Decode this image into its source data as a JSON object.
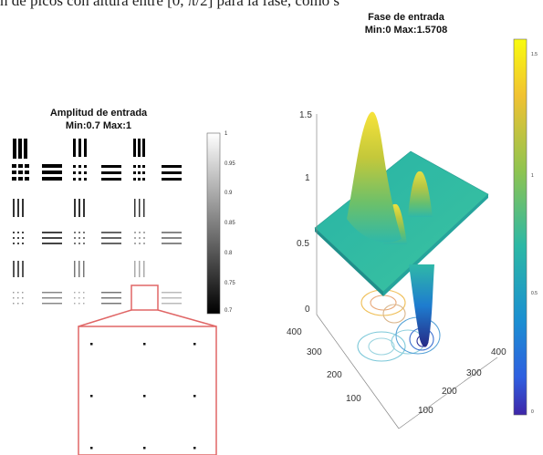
{
  "top_text": "n de picos con altura entre [0, π/2] para la fase, como s",
  "left_panel": {
    "title": "Amplitud de entrada",
    "subtitle": "Min:0.7 Max:1",
    "colorbar_ticks": [
      "1",
      "0.95",
      "0.9",
      "0.85",
      "0.8",
      "0.75",
      "0.7"
    ]
  },
  "right_panel": {
    "title": "Fase de entrada",
    "subtitle": "Min:0 Max:1.5708",
    "z_ticks": [
      "1.5",
      "1",
      "0.5",
      "0"
    ],
    "y_ticks": [
      "400",
      "300",
      "200",
      "100"
    ],
    "x_ticks": [
      "400",
      "300",
      "200",
      "100"
    ],
    "colorbar_ticks": [
      "1.5",
      "1",
      "0.5",
      "0"
    ]
  },
  "colors": {
    "highlight": "#e06666",
    "surface_base": "#2fb8a8",
    "peak": "#f5e23a",
    "valley": "#2a2f8f"
  }
}
